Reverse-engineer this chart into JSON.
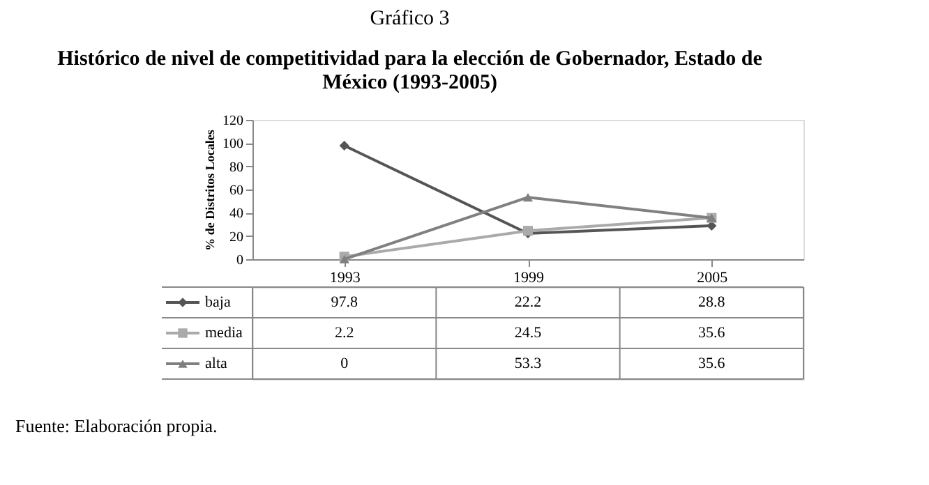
{
  "chart_data": {
    "type": "line",
    "title": "Gráfico 3",
    "subtitle": "Histórico de nivel de competitividad para la elección de Gobernador, Estado de México (1993-2005)",
    "ylabel": "% de Distritos Locales",
    "categories": [
      "1993",
      "1999",
      "2005"
    ],
    "series": [
      {
        "name": "baja",
        "color": "#555555",
        "marker": "diamond",
        "values": [
          97.8,
          22.2,
          28.8
        ]
      },
      {
        "name": "media",
        "color": "#aaaaaa",
        "marker": "square",
        "values": [
          2.2,
          24.5,
          35.6
        ]
      },
      {
        "name": "alta",
        "color": "#808080",
        "marker": "triangle",
        "values": [
          0,
          53.3,
          35.6
        ]
      }
    ],
    "ylim": [
      0,
      120
    ],
    "yticks": [
      0,
      20,
      40,
      60,
      80,
      100,
      120
    ],
    "grid": false,
    "line_style": "solid",
    "data_labels": true,
    "legend": "bottom left",
    "annotations": [
      "Fuente: Elaboración propia."
    ]
  }
}
